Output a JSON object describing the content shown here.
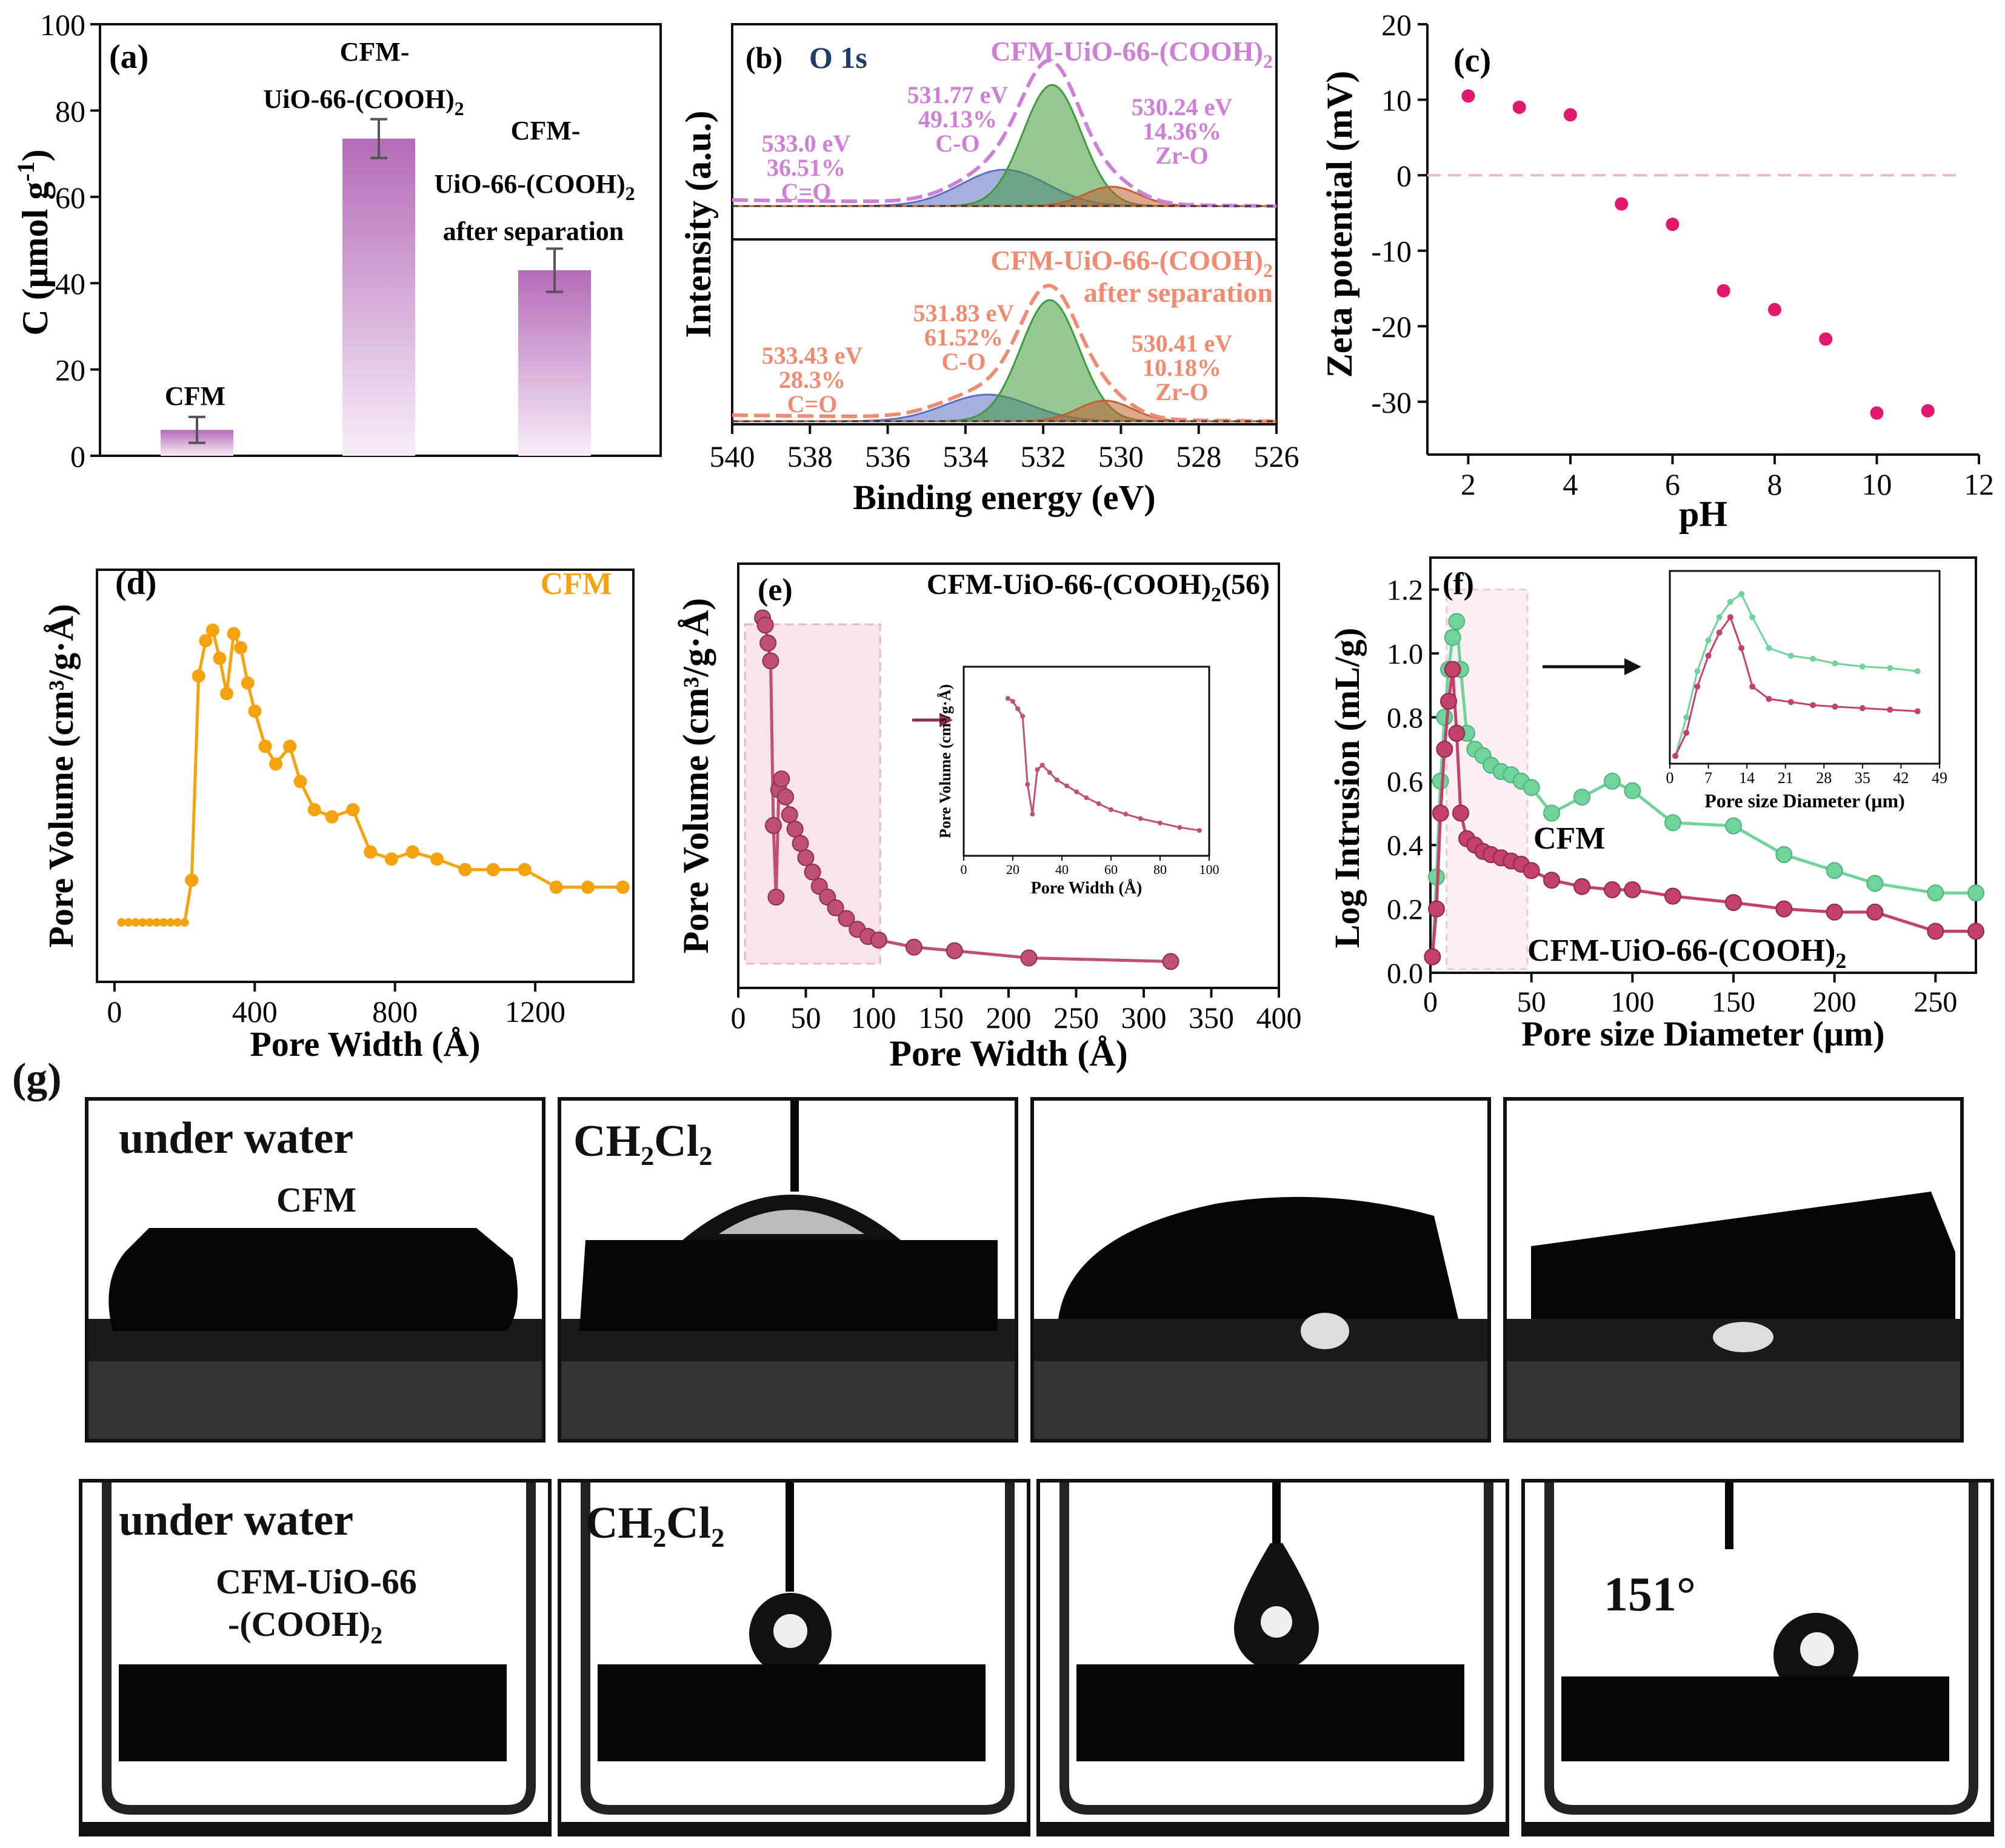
{
  "chart_data": [
    {
      "id": "a",
      "type": "bar",
      "panel_label": "(a)",
      "categories": [
        "CFM",
        "CFM-UiO-66-(COOH)2",
        "CFM-UiO-66-(COOH)2 after separation"
      ],
      "category_lines": [
        [
          "CFM"
        ],
        [
          "CFM-",
          "UiO-66-(COOH)",
          "2"
        ],
        [
          "CFM-",
          "UiO-66-(COOH)",
          "2",
          "after separation"
        ]
      ],
      "values": [
        6,
        73.5,
        43
      ],
      "errors": [
        3,
        4.5,
        5
      ],
      "ylabel": "C (μmol g",
      "ylabel_sup": "-1",
      "ylabel_end": ")",
      "ylim": [
        0,
        100
      ],
      "yticks": [
        "0",
        "20",
        "40",
        "60",
        "80",
        "100"
      ],
      "color": "#b56ab8"
    },
    {
      "id": "b",
      "type": "line",
      "panel_label": "(b)",
      "subtitle": "O 1s",
      "xlabel": "Binding energy (eV)",
      "ylabel": "Intensity (a.u.)",
      "xlim": [
        540,
        526
      ],
      "xticks": [
        "540",
        "538",
        "536",
        "534",
        "532",
        "530",
        "528",
        "526"
      ],
      "top": {
        "name": "CFM-UiO-66-(COOH)",
        "name_sub": "2",
        "color": "#cf7fd6",
        "peaks": [
          {
            "center": 533.0,
            "height": 0.3,
            "width": 1.1,
            "color": "#5b6fc5",
            "l1": "533.0 eV",
            "l2": "36.51%",
            "l3": "C=O"
          },
          {
            "center": 531.77,
            "height": 1.0,
            "width": 0.75,
            "color": "#3f9a3c",
            "l1": "531.77 eV",
            "l2": "49.13%",
            "l3": "C-O"
          },
          {
            "center": 530.24,
            "height": 0.16,
            "width": 0.7,
            "color": "#c1602f",
            "l1": "530.24 eV",
            "l2": "14.36%",
            "l3": "Zr-O"
          }
        ]
      },
      "bottom": {
        "name": "CFM-UiO-66-(COOH)",
        "name_sub": "2",
        "name_line2": "after separation",
        "color": "#f08a70",
        "peaks": [
          {
            "center": 533.43,
            "height": 0.22,
            "width": 1.1,
            "color": "#5b6fc5",
            "l1": "533.43 eV",
            "l2": "28.3%",
            "l3": "C=O"
          },
          {
            "center": 531.83,
            "height": 1.0,
            "width": 0.75,
            "color": "#3f9a3c",
            "l1": "531.83 eV",
            "l2": "61.52%",
            "l3": "C-O"
          },
          {
            "center": 530.41,
            "height": 0.17,
            "width": 0.7,
            "color": "#c1602f",
            "l1": "530.41 eV",
            "l2": "10.18%",
            "l3": "Zr-O"
          }
        ]
      }
    },
    {
      "id": "c",
      "type": "scatter",
      "panel_label": "(c)",
      "x": [
        2,
        3,
        4,
        5,
        6,
        7,
        8,
        9,
        10,
        11
      ],
      "y": [
        10.5,
        9,
        8,
        -3.8,
        -6.5,
        -15.3,
        -17.8,
        -21.7,
        -31.5,
        -31.2
      ],
      "xlabel": "pH",
      "ylabel": "Zeta potential (mV)",
      "xlim": [
        1.2,
        12
      ],
      "ylim": [
        -37,
        20
      ],
      "xticks": [
        2,
        4,
        6,
        8,
        10,
        12
      ],
      "yticks": [
        20,
        10,
        0,
        -10,
        -20,
        -30
      ],
      "color": "#e0186e"
    },
    {
      "id": "d",
      "type": "line",
      "panel_label": "(d)",
      "legend": "CFM",
      "x": [
        20,
        40,
        60,
        80,
        100,
        120,
        140,
        160,
        180,
        200,
        220,
        240,
        260,
        280,
        300,
        320,
        340,
        360,
        380,
        400,
        430,
        460,
        500,
        530,
        570,
        620,
        680,
        730,
        790,
        850,
        920,
        1000,
        1080,
        1170,
        1260,
        1350,
        1450
      ],
      "y": [
        0.1,
        0.1,
        0.1,
        0.1,
        0.1,
        0.1,
        0.1,
        0.1,
        0.1,
        0.1,
        0.22,
        0.8,
        0.9,
        0.93,
        0.85,
        0.75,
        0.92,
        0.88,
        0.78,
        0.7,
        0.6,
        0.55,
        0.6,
        0.5,
        0.42,
        0.4,
        0.42,
        0.3,
        0.28,
        0.3,
        0.28,
        0.25,
        0.25,
        0.25,
        0.2,
        0.2,
        0.2
      ],
      "xlabel": "Pore Width (Å)",
      "ylabel": "Pore Volume (cm³/g·Å)",
      "xlim": [
        -50,
        1480
      ],
      "xticks": [
        0,
        400,
        800,
        1200
      ],
      "color": "#f5a20f"
    },
    {
      "id": "e",
      "type": "line",
      "panel_label": "(e)",
      "title": "CFM-UiO-66-(COOH)",
      "title_sub": "2",
      "title_end": "(56)",
      "x": [
        18,
        20,
        22,
        24,
        26,
        28,
        30,
        32,
        35,
        38,
        42,
        46,
        50,
        55,
        60,
        66,
        72,
        80,
        88,
        96,
        104,
        130,
        160,
        215,
        320
      ],
      "y": [
        1.0,
        0.98,
        0.93,
        0.88,
        0.42,
        0.22,
        0.52,
        0.55,
        0.5,
        0.45,
        0.41,
        0.37,
        0.33,
        0.29,
        0.25,
        0.22,
        0.19,
        0.16,
        0.13,
        0.11,
        0.1,
        0.08,
        0.07,
        0.05,
        0.04
      ],
      "xlabel": "Pore Width (Å)",
      "ylabel": "Pore Volume (cm³/g·Å)",
      "xlim": [
        0,
        400
      ],
      "xticks": [
        0,
        50,
        100,
        150,
        200,
        250,
        300,
        350,
        400
      ],
      "color": "#c04f77",
      "inset": {
        "xlabel": "Pore Width (Å)",
        "ylabel": "Pore Volume (cm³/g·Å)",
        "xticks": [
          0,
          20,
          40,
          60,
          80,
          100
        ]
      }
    },
    {
      "id": "f",
      "type": "line",
      "panel_label": "(f)",
      "xlabel": "Pore size Diameter (μm)",
      "ylabel": "Log Intrusion (mL/g)",
      "xlim": [
        0,
        270
      ],
      "ylim": [
        0,
        1.3
      ],
      "xticks": [
        0,
        50,
        100,
        150,
        200,
        250
      ],
      "yticks": [
        "0.0",
        "0.2",
        "0.4",
        "0.6",
        "0.8",
        "1.0",
        "1.2"
      ],
      "series": [
        {
          "name": "CFM",
          "color": "#6fd39a",
          "x": [
            1,
            3,
            5,
            7,
            9,
            11,
            13,
            15,
            18,
            22,
            26,
            30,
            35,
            40,
            45,
            50,
            60,
            75,
            90,
            100,
            120,
            150,
            175,
            200,
            220,
            250,
            270
          ],
          "y": [
            0.05,
            0.3,
            0.6,
            0.8,
            0.95,
            1.05,
            1.1,
            0.95,
            0.75,
            0.7,
            0.68,
            0.65,
            0.63,
            0.62,
            0.6,
            0.58,
            0.5,
            0.55,
            0.6,
            0.57,
            0.47,
            0.46,
            0.37,
            0.32,
            0.28,
            0.25,
            0.25
          ]
        },
        {
          "name": "CFM-UiO-66-(COOH)",
          "name_sub": "2",
          "color": "#c4416b",
          "x": [
            1,
            3,
            5,
            7,
            9,
            11,
            13,
            15,
            18,
            22,
            26,
            30,
            35,
            40,
            45,
            50,
            60,
            75,
            90,
            100,
            120,
            150,
            175,
            200,
            220,
            250,
            270
          ],
          "y": [
            0.05,
            0.2,
            0.5,
            0.7,
            0.85,
            0.95,
            0.75,
            0.5,
            0.42,
            0.4,
            0.38,
            0.37,
            0.36,
            0.35,
            0.34,
            0.32,
            0.29,
            0.27,
            0.26,
            0.26,
            0.24,
            0.22,
            0.2,
            0.19,
            0.19,
            0.13,
            0.13
          ]
        }
      ],
      "inset": {
        "xlabel": "Pore size Diameter (μm)",
        "xticks": [
          "0",
          "7",
          "14",
          "21",
          "28",
          "35",
          "42",
          "49"
        ]
      }
    }
  ],
  "panel_g": {
    "label": "(g)",
    "row1": {
      "t1": "under water",
      "t2": "CFM",
      "t3": "CH₂Cl₂"
    },
    "row2": {
      "t1": "under water",
      "t2a": "CFM-UiO-66",
      "t2b": "-(COOH)",
      "t2b_sub": "2",
      "t3": "CH₂Cl₂",
      "angle": "151°"
    }
  }
}
